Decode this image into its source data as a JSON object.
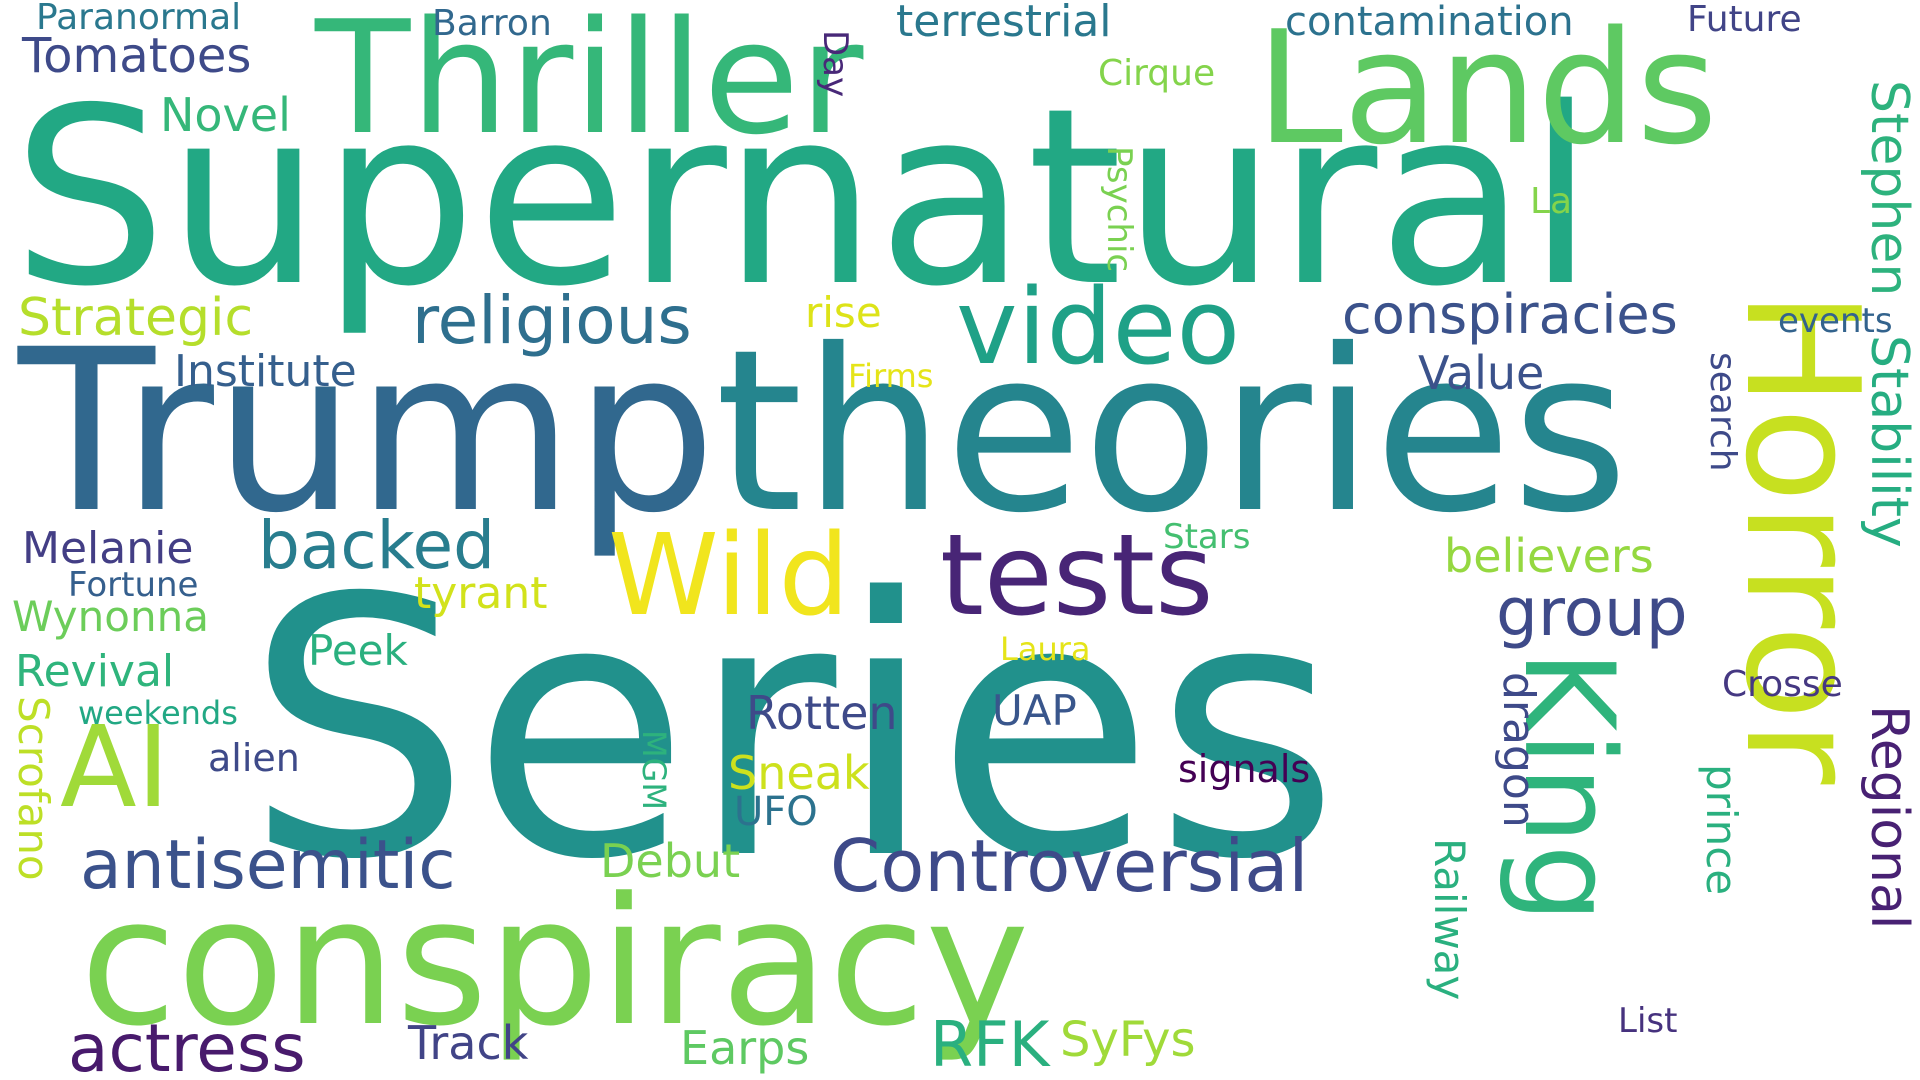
{
  "words": [
    {
      "text": "Series",
      "color": "#21918c",
      "rotate": 0
    },
    {
      "text": "Supernatural",
      "color": "#22a884",
      "rotate": 0
    },
    {
      "text": "Trump",
      "color": "#31688e",
      "rotate": 0
    },
    {
      "text": "theories",
      "color": "#25858e",
      "rotate": 0
    },
    {
      "text": "conspiracy",
      "color": "#7ad151",
      "rotate": 0
    },
    {
      "text": "Thriller",
      "color": "#35b779",
      "rotate": 0
    },
    {
      "text": "Lands",
      "color": "#5ec962",
      "rotate": 0
    },
    {
      "text": "Horror",
      "color": "#c7e020",
      "rotate": 90
    },
    {
      "text": "King",
      "color": "#2fb47c",
      "rotate": 90
    },
    {
      "text": "tests",
      "color": "#482576",
      "rotate": 0
    },
    {
      "text": "Wild",
      "color": "#f1e51d",
      "rotate": 0
    },
    {
      "text": "video",
      "color": "#1fa187",
      "rotate": 0
    },
    {
      "text": "AI",
      "color": "#a0da39",
      "rotate": 0
    },
    {
      "text": "religious",
      "color": "#2e6f8e",
      "rotate": 0
    },
    {
      "text": "conspiracies",
      "color": "#3b528b",
      "rotate": 0
    },
    {
      "text": "Controversial",
      "color": "#3e4a89",
      "rotate": 0
    },
    {
      "text": "antisemitic",
      "color": "#3b528b",
      "rotate": 0
    },
    {
      "text": "actress",
      "color": "#481a6c",
      "rotate": 0
    },
    {
      "text": "backed",
      "color": "#287d8e",
      "rotate": 0
    },
    {
      "text": "group",
      "color": "#3e4a89",
      "rotate": 0
    },
    {
      "text": "Stephen",
      "color": "#2db27d",
      "rotate": 90
    },
    {
      "text": "Stability",
      "color": "#26ad81",
      "rotate": 90
    },
    {
      "text": "Regional",
      "color": "#482173",
      "rotate": 90
    },
    {
      "text": "Strategic",
      "color": "#b5de2b",
      "rotate": 0
    },
    {
      "text": "Institute",
      "color": "#355f8d",
      "rotate": 0
    },
    {
      "text": "Value",
      "color": "#3b528b",
      "rotate": 0
    },
    {
      "text": "Tomatoes",
      "color": "#3e4a89",
      "rotate": 0
    },
    {
      "text": "Novel",
      "color": "#35b779",
      "rotate": 0
    },
    {
      "text": "terrestrial",
      "color": "#2a788e",
      "rotate": 0
    },
    {
      "text": "contamination",
      "color": "#2c728e",
      "rotate": 0
    },
    {
      "text": "Future",
      "color": "#414487",
      "rotate": 0
    },
    {
      "text": "Paranormal",
      "color": "#2a788e",
      "rotate": 0
    },
    {
      "text": "Barron",
      "color": "#31688e",
      "rotate": 0
    },
    {
      "text": "Day",
      "color": "#482878",
      "rotate": 90
    },
    {
      "text": "Cirque",
      "color": "#84d44b",
      "rotate": 0
    },
    {
      "text": "Psychic",
      "color": "#7ad151",
      "rotate": 90
    },
    {
      "text": "La",
      "color": "#84d44b",
      "rotate": 0
    },
    {
      "text": "rise",
      "color": "#dde318",
      "rotate": 0
    },
    {
      "text": "Firms",
      "color": "#e5e419",
      "rotate": 0
    },
    {
      "text": "events",
      "color": "#33638d",
      "rotate": 0
    },
    {
      "text": "search",
      "color": "#3e4a89",
      "rotate": 90
    },
    {
      "text": "Melanie",
      "color": "#433e85",
      "rotate": 0
    },
    {
      "text": "Fortune",
      "color": "#355f8d",
      "rotate": 0
    },
    {
      "text": "Wynonna",
      "color": "#6ccd5a",
      "rotate": 0
    },
    {
      "text": "tyrant",
      "color": "#d2e21b",
      "rotate": 0
    },
    {
      "text": "Stars",
      "color": "#44bf70",
      "rotate": 0
    },
    {
      "text": "believers",
      "color": "#95d840",
      "rotate": 0
    },
    {
      "text": "Peek",
      "color": "#2ab07f",
      "rotate": 0
    },
    {
      "text": "Laura",
      "color": "#e5e419",
      "rotate": 0
    },
    {
      "text": "Revival",
      "color": "#2fb47c",
      "rotate": 0
    },
    {
      "text": "weekends",
      "color": "#22a884",
      "rotate": 0
    },
    {
      "text": "Scrofano",
      "color": "#bddf26",
      "rotate": 90
    },
    {
      "text": "alien",
      "color": "#3e4a89",
      "rotate": 0
    },
    {
      "text": "Rotten",
      "color": "#3e4a89",
      "rotate": 0
    },
    {
      "text": "UAP",
      "color": "#39568c",
      "rotate": 0
    },
    {
      "text": "Crosse",
      "color": "#453882",
      "rotate": 0
    },
    {
      "text": "dragon",
      "color": "#3e4a89",
      "rotate": 90
    },
    {
      "text": "MGM",
      "color": "#2db27d",
      "rotate": 90
    },
    {
      "text": "Sneak",
      "color": "#cde11d",
      "rotate": 0
    },
    {
      "text": "UFO",
      "color": "#2c728e",
      "rotate": 0
    },
    {
      "text": "signals",
      "color": "#440154",
      "rotate": 0
    },
    {
      "text": "prince",
      "color": "#2ab07f",
      "rotate": 90
    },
    {
      "text": "Debut",
      "color": "#7ad151",
      "rotate": 0
    },
    {
      "text": "Railway",
      "color": "#2ab07f",
      "rotate": 90
    },
    {
      "text": "Track",
      "color": "#414487",
      "rotate": 0
    },
    {
      "text": "Earps",
      "color": "#5ec962",
      "rotate": 0
    },
    {
      "text": "RFK",
      "color": "#2ab07f",
      "rotate": 0
    },
    {
      "text": "SyFys",
      "color": "#a0da39",
      "rotate": 0
    },
    {
      "text": "List",
      "color": "#46327e",
      "rotate": 0
    }
  ]
}
